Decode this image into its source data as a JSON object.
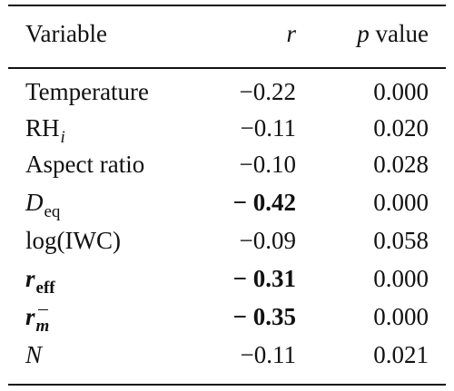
{
  "header": {
    "variable": "Variable",
    "r": "r",
    "p_italic": "p",
    "p_rest": " value"
  },
  "rows": [
    {
      "var": "Temperature",
      "r": "−0.22",
      "p": "0.000"
    },
    {
      "var_main": "RH",
      "var_sub": "i",
      "r": "−0.11",
      "p": "0.020"
    },
    {
      "var": "Aspect ratio",
      "r": "−0.10",
      "p": "0.028"
    },
    {
      "var_main": "D",
      "var_sub": "eq",
      "r": "− 0.42",
      "p": "0.000"
    },
    {
      "var": "log(IWC)",
      "r": "−0.09",
      "p": "0.058"
    },
    {
      "var_main": "r",
      "var_sub": "eff",
      "r": "− 0.31",
      "p": "0.000"
    },
    {
      "var_main": "r",
      "var_sub": "m",
      "r": "− 0.35",
      "p": "0.000"
    },
    {
      "var": "N",
      "r": "−0.11",
      "p": "0.021"
    }
  ]
}
